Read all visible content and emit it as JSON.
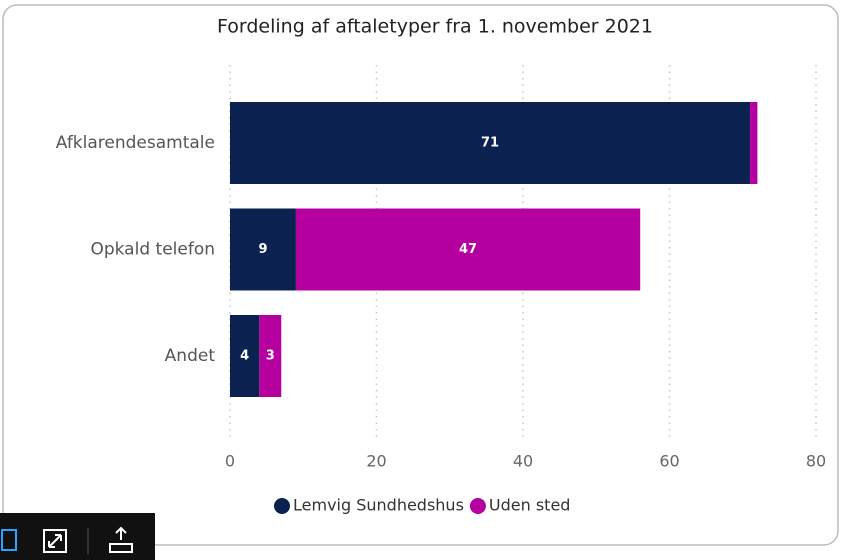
{
  "chart_data": {
    "type": "stacked-barh",
    "title": "Fordeling af aftaletyper fra 1. november 2021",
    "categories": [
      "Afklarendesamtale",
      "Opkald telefon",
      "Andet"
    ],
    "series": [
      {
        "name": "Lemvig Sundhedshus",
        "color": "#0b2150",
        "values": [
          71,
          9,
          4
        ]
      },
      {
        "name": "Uden sted",
        "color": "#b5009f",
        "values": [
          1,
          47,
          3
        ]
      }
    ],
    "xlim": [
      0,
      80
    ],
    "xticks": [
      0,
      20,
      40,
      60,
      80
    ],
    "grid": true,
    "legend": "bottom"
  }
}
